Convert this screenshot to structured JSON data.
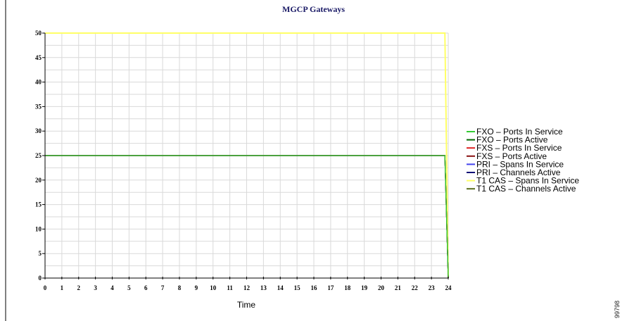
{
  "chart_data": {
    "type": "line",
    "title": "MGCP Gateways",
    "xlabel": "Time",
    "ylabel": "",
    "x": [
      0,
      23.8,
      24
    ],
    "xlim": [
      0,
      24
    ],
    "ylim": [
      0,
      50
    ],
    "xticks": [
      "0",
      "1",
      "2",
      "3",
      "4",
      "5",
      "6",
      "7",
      "8",
      "9",
      "10",
      "11",
      "12",
      "13",
      "14",
      "15",
      "16",
      "17",
      "18",
      "19",
      "20",
      "21",
      "22",
      "23",
      "24"
    ],
    "yticks": [
      "0",
      "5",
      "10",
      "15",
      "20",
      "25",
      "30",
      "35",
      "40",
      "45",
      "50"
    ],
    "grid": true,
    "legend_position": "right",
    "series": [
      {
        "name": "FXO – Ports In Service",
        "color": "#33cc33",
        "values": [
          25,
          25,
          0
        ]
      },
      {
        "name": "FXO – Ports Active",
        "color": "#006600",
        "values": [
          25,
          25,
          0
        ]
      },
      {
        "name": "FXS – Ports In Service",
        "color": "#dd2222",
        "values": [
          25,
          25,
          0
        ]
      },
      {
        "name": "FXS – Ports Active",
        "color": "#881111",
        "values": [
          25,
          25,
          0
        ]
      },
      {
        "name": "PRI – Spans In Service",
        "color": "#4444ee",
        "values": [
          25,
          25,
          0
        ]
      },
      {
        "name": "PRI – Channels Active",
        "color": "#111177",
        "values": [
          25,
          25,
          0
        ]
      },
      {
        "name": "T1 CAS – Spans In Service",
        "color": "#ffff66",
        "values": [
          50,
          50,
          0
        ]
      },
      {
        "name": "T1 CAS – Channels Active",
        "color": "#5a6e1e",
        "values": [
          25,
          25,
          0
        ]
      }
    ]
  },
  "side_mark": "99798"
}
